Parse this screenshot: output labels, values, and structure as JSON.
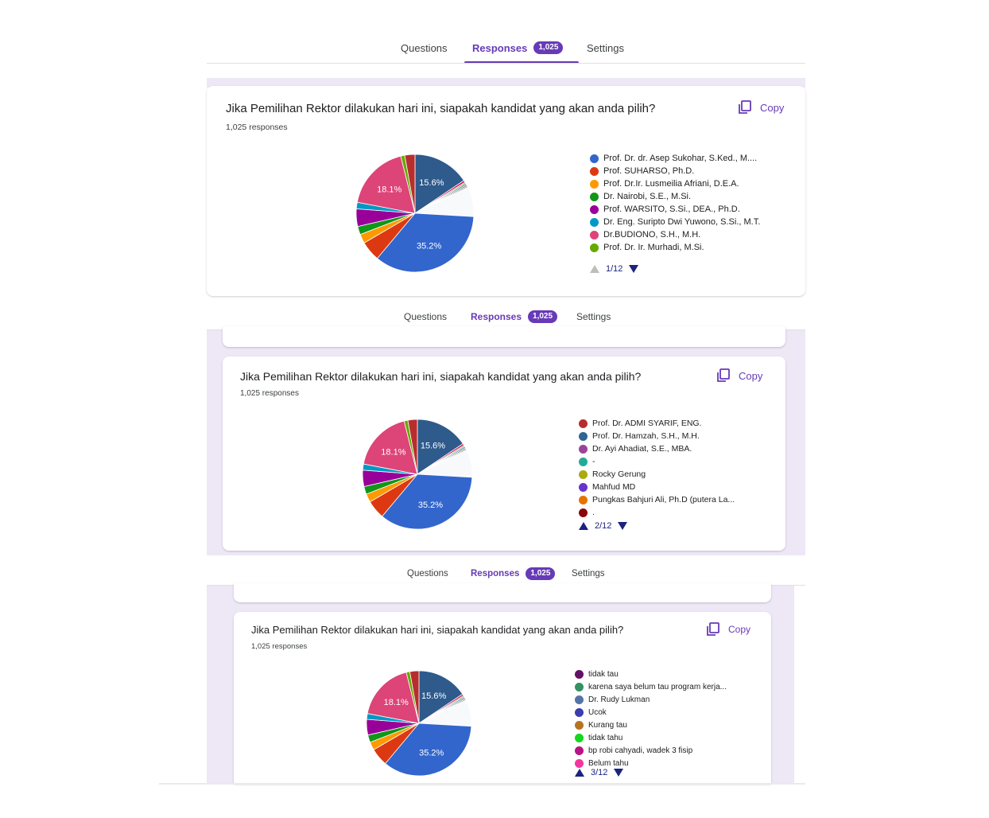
{
  "tabs": {
    "questions": "Questions",
    "responses": "Responses",
    "settings": "Settings",
    "badge": "1,025"
  },
  "question": {
    "title": "Jika Pemilihan Rektor dilakukan hari ini, siapakah kandidat yang akan anda pilih?",
    "responses": "1,025 responses",
    "copy_label": "Copy"
  },
  "colors": {
    "accent": "#673ab7",
    "pager": "#1a237e"
  },
  "chart_data": {
    "type": "pie",
    "slices": [
      {
        "value": 15.6,
        "label": "15.6%",
        "color": "#2e5a8c"
      },
      {
        "value": 0.6,
        "color": "#d81b60"
      },
      {
        "value": 0.4,
        "color": "#7cb342"
      },
      {
        "value": 0.4,
        "color": "#3f51b5"
      },
      {
        "value": 0.4,
        "color": "#43a047"
      },
      {
        "value": 0.3,
        "color": "#8e24aa"
      },
      {
        "value": 8.2,
        "color": "#f8f9fa"
      },
      {
        "value": 35.2,
        "label": "35.2%",
        "color": "#3366cc"
      },
      {
        "value": 5.5,
        "color": "#dc3912"
      },
      {
        "value": 2.5,
        "color": "#ff9900"
      },
      {
        "value": 2.3,
        "color": "#109618"
      },
      {
        "value": 4.8,
        "color": "#990099"
      },
      {
        "value": 1.8,
        "color": "#0099c6"
      },
      {
        "value": 18.1,
        "label": "18.1%",
        "color": "#dd4477"
      },
      {
        "value": 1.1,
        "color": "#66aa00"
      },
      {
        "value": 2.8,
        "color": "#b82e2e"
      }
    ]
  },
  "legend_pages": [
    {
      "page": "1/12",
      "items": [
        {
          "label": "Prof. Dr. dr. Asep Sukohar, S.Ked., M....",
          "color": "#3366cc"
        },
        {
          "label": "Prof. SUHARSO, Ph.D.",
          "color": "#dc3912"
        },
        {
          "label": "Prof. Dr.Ir. Lusmeilia Afriani, D.E.A.",
          "color": "#ff9900"
        },
        {
          "label": "Dr. Nairobi, S.E., M.Si.",
          "color": "#109618"
        },
        {
          "label": "Prof. WARSITO, S.Si., DEA., Ph.D.",
          "color": "#990099"
        },
        {
          "label": "Dr. Eng. Suripto Dwi Yuwono, S.Si., M.T.",
          "color": "#0099c6"
        },
        {
          "label": "Dr.BUDIONO, S.H., M.H.",
          "color": "#dd4477"
        },
        {
          "label": "Prof. Dr. Ir. Murhadi, M.Si.",
          "color": "#66aa00"
        }
      ]
    },
    {
      "page": "2/12",
      "items": [
        {
          "label": "Prof. Dr. ADMI SYARIF, ENG.",
          "color": "#b82e2e"
        },
        {
          "label": "Prof. Dr. Hamzah, S.H., M.H.",
          "color": "#316395"
        },
        {
          "label": "Dr. Ayi Ahadiat, S.E., MBA.",
          "color": "#994499"
        },
        {
          "label": "-",
          "color": "#22aa99"
        },
        {
          "label": "Rocky Gerung",
          "color": "#aaaa11"
        },
        {
          "label": "Mahfud MD",
          "color": "#6633cc"
        },
        {
          "label": "Pungkas Bahjuri Ali, Ph.D (putera La...",
          "color": "#e67300"
        },
        {
          "label": ".",
          "color": "#8b0707"
        }
      ]
    },
    {
      "page": "3/12",
      "items": [
        {
          "label": "tidak tau",
          "color": "#651067"
        },
        {
          "label": "karena saya belum tau program kerja...",
          "color": "#329262"
        },
        {
          "label": "Dr. Rudy Lukman",
          "color": "#5574a6"
        },
        {
          "label": "Ucok",
          "color": "#3b3eac"
        },
        {
          "label": "Kurang tau",
          "color": "#b77322"
        },
        {
          "label": "tidak tahu",
          "color": "#16d620"
        },
        {
          "label": "bp robi cahyadi, wadek 3 fisip",
          "color": "#b91383"
        },
        {
          "label": "Belum tahu",
          "color": "#f4359e"
        }
      ]
    }
  ]
}
